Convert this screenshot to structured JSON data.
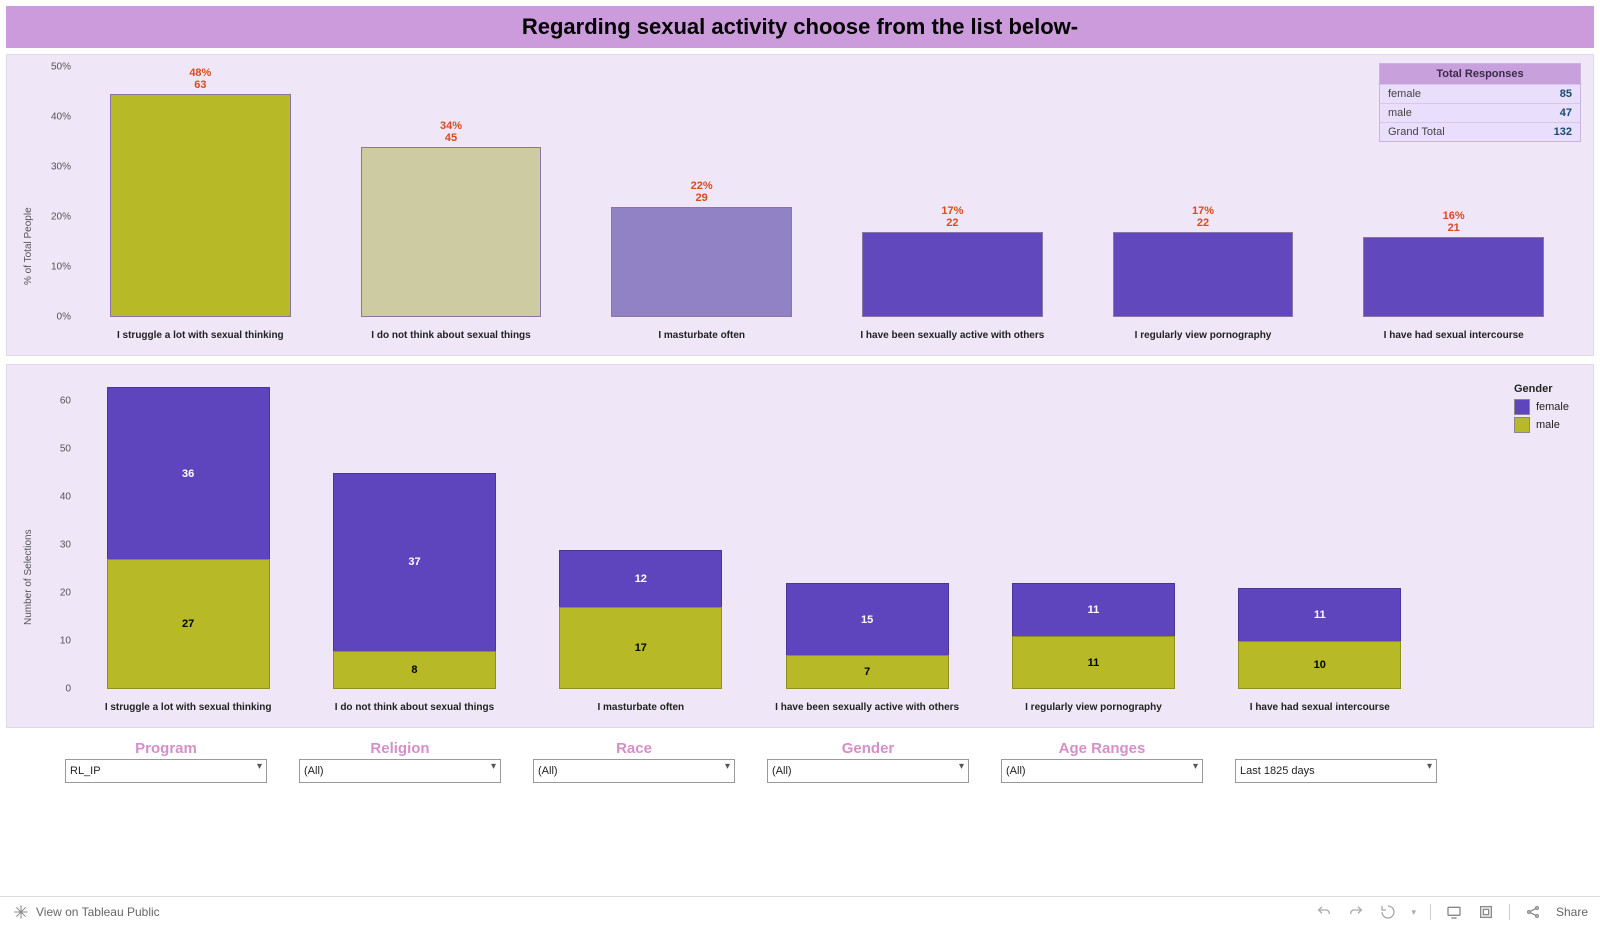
{
  "title": "Regarding sexual activity choose from the list below-",
  "colors": {
    "title_bg": "#cb9bdc",
    "panel_bg": "#efe7f7",
    "female": "#5f45bd",
    "male": "#b8b926",
    "value_text": "#d94a1f"
  },
  "top_chart": {
    "type": "bar",
    "y_label": "% of Total People",
    "ylim": [
      0,
      50
    ],
    "ytick_step": 10,
    "ytick_suffix": "%",
    "categories": [
      "I struggle a lot with sexual thinking",
      "I do not think about sexual things",
      "I masturbate often",
      "I have been sexually active with others",
      "I regularly view pornography",
      "I have had sexual intercourse"
    ],
    "percent_labels": [
      "48%",
      "34%",
      "22%",
      "17%",
      "17%",
      "16%"
    ],
    "counts": [
      63,
      45,
      29,
      22,
      22,
      21
    ],
    "values_pct": [
      48,
      34,
      22,
      17,
      17,
      16
    ],
    "bar_colors": [
      "#b7ba26",
      "#cccba1",
      "#9082c4",
      "#6148bd",
      "#6148bd",
      "#6148bd"
    ]
  },
  "bottom_chart": {
    "type": "stacked-bar",
    "y_label": "Number of Selections",
    "ylim": [
      0,
      65
    ],
    "yticks": [
      0,
      10,
      20,
      30,
      40,
      50,
      60
    ],
    "categories": [
      "I struggle a lot with sexual thinking",
      "I do not think about sexual things",
      "I masturbate often",
      "I have been sexually active with others",
      "I regularly view pornography",
      "I have had sexual intercourse"
    ],
    "female": [
      36,
      37,
      12,
      15,
      11,
      11
    ],
    "male": [
      27,
      8,
      17,
      7,
      11,
      10
    ]
  },
  "legend": {
    "title": "Gender",
    "items": [
      {
        "label": "female",
        "color": "#5f45bd"
      },
      {
        "label": "male",
        "color": "#b8b926"
      }
    ]
  },
  "totals": {
    "title": "Total Responses",
    "rows": [
      {
        "k": "female",
        "v": 85
      },
      {
        "k": "male",
        "v": 47
      },
      {
        "k": "Grand Total",
        "v": 132
      }
    ]
  },
  "filters": [
    {
      "label": "Program",
      "value": "RL_IP"
    },
    {
      "label": "Religion",
      "value": "(All)"
    },
    {
      "label": "Race",
      "value": "(All)"
    },
    {
      "label": "Gender",
      "value": "(All)"
    },
    {
      "label": "Age Ranges",
      "value": "(All)"
    }
  ],
  "date_filter": "Last 1825 days",
  "footer": {
    "view": "View on Tableau Public",
    "share": "Share"
  }
}
